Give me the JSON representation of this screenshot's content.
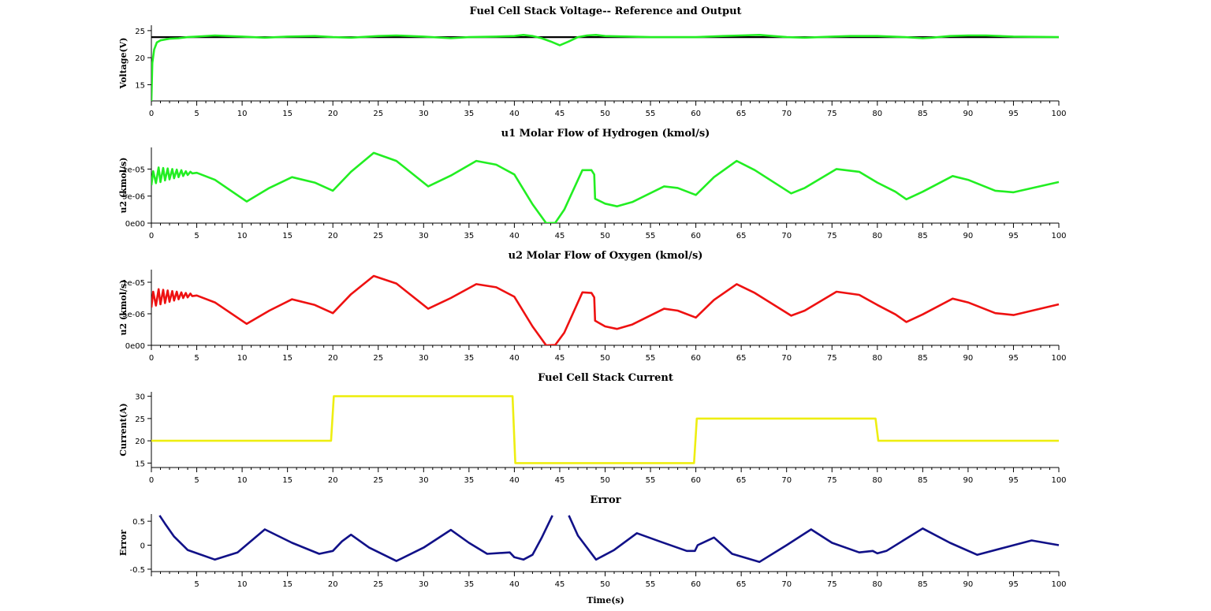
{
  "figure": {
    "x_label": "Time(s)"
  },
  "chart_data": [
    {
      "id": "voltage",
      "type": "line",
      "title": "Fuel Cell Stack Voltage-- Reference and Output",
      "ylabel": "Voltage(V)",
      "xlim": [
        0,
        100
      ],
      "ylim": [
        12,
        26
      ],
      "yticks": [
        15,
        20,
        25
      ],
      "ytick_labels": [
        "15",
        "20",
        "25"
      ],
      "xticks": [
        0,
        5,
        10,
        15,
        20,
        25,
        30,
        35,
        40,
        45,
        50,
        55,
        60,
        65,
        70,
        75,
        80,
        85,
        90,
        95,
        100
      ],
      "xtick_labels": [
        "0",
        "5",
        "10",
        "15",
        "20",
        "25",
        "30",
        "35",
        "40",
        "45",
        "50",
        "55",
        "60",
        "65",
        "70",
        "75",
        "80",
        "85",
        "90",
        "95",
        "100"
      ],
      "series": [
        {
          "color": "#000000",
          "x": [
            0,
            100
          ],
          "y": [
            23.8,
            23.8
          ]
        },
        {
          "color": "#22ee22",
          "x": [
            0,
            0.1,
            0.3,
            0.6,
            1,
            2,
            3,
            4,
            5,
            7,
            10,
            12.5,
            15,
            18,
            20,
            22,
            25,
            27,
            30,
            33,
            35,
            38,
            40,
            41,
            42,
            43,
            44,
            45,
            46,
            47,
            48,
            49,
            50,
            55,
            60,
            63,
            65,
            67,
            70,
            72,
            75,
            77,
            80,
            83,
            85,
            86,
            88,
            90,
            92,
            95,
            100
          ],
          "y": [
            12,
            19,
            21.5,
            22.8,
            23.2,
            23.5,
            23.6,
            23.8,
            23.9,
            24.1,
            23.9,
            23.7,
            23.9,
            24.0,
            23.8,
            23.7,
            24.0,
            24.1,
            23.9,
            23.6,
            23.8,
            23.9,
            24.0,
            24.2,
            24.0,
            23.6,
            23.0,
            22.3,
            23.0,
            23.8,
            24.1,
            24.2,
            24.0,
            23.8,
            23.8,
            24.0,
            24.1,
            24.2,
            23.8,
            23.7,
            23.9,
            24.0,
            24.0,
            23.8,
            23.6,
            23.7,
            24.0,
            24.1,
            24.1,
            23.9,
            23.8
          ]
        }
      ]
    },
    {
      "id": "hydrogen",
      "type": "line",
      "title": "u1 Molar Flow of Hydrogen (kmol/s)",
      "ylabel": "u2 (kmol/s)",
      "xlim": [
        0,
        100
      ],
      "ylim": [
        0,
        1.4e-05
      ],
      "yticks": [
        0,
        5e-06,
        1e-05
      ],
      "ytick_labels": [
        "0e00",
        "5e-06",
        "1e-05"
      ],
      "xticks": [
        0,
        5,
        10,
        15,
        20,
        25,
        30,
        35,
        40,
        45,
        50,
        55,
        60,
        65,
        70,
        75,
        80,
        85,
        90,
        95,
        100
      ],
      "xtick_labels": [
        "0",
        "5",
        "10",
        "15",
        "20",
        "25",
        "30",
        "35",
        "40",
        "45",
        "50",
        "55",
        "60",
        "65",
        "70",
        "75",
        "80",
        "85",
        "90",
        "95",
        "100"
      ],
      "series": [
        {
          "color": "#22ee22",
          "x": [
            0,
            0.2,
            0.5,
            0.8,
            1.0,
            1.3,
            1.5,
            1.8,
            2.0,
            2.3,
            2.5,
            2.8,
            3.0,
            3.3,
            3.5,
            3.8,
            4.0,
            4.3,
            4.5,
            5,
            7,
            10.5,
            13,
            15.5,
            18,
            20,
            22,
            24.5,
            27,
            30.5,
            33,
            35.8,
            38,
            40,
            42,
            43.5,
            44.5,
            45.5,
            47.5,
            48.5,
            48.8,
            48.9,
            50,
            51.3,
            53,
            56.5,
            58,
            60,
            62,
            64.5,
            66.5,
            70.5,
            72,
            75.5,
            78,
            80,
            82,
            83.2,
            85,
            88.3,
            90,
            93,
            95,
            100
          ],
          "y": [
            7e-06,
            9.6e-06,
            7.4e-06,
            1.03e-05,
            7.6e-06,
            1.02e-05,
            7.9e-06,
            1.01e-05,
            8.1e-06,
            1e-05,
            8.3e-06,
            9.9e-06,
            8.5e-06,
            9.8e-06,
            8.7e-06,
            9.6e-06,
            8.9e-06,
            9.5e-06,
            9.2e-06,
            9.3e-06,
            8e-06,
            4e-06,
            6.5e-06,
            8.5e-06,
            7.5e-06,
            6e-06,
            9.5e-06,
            1.3e-05,
            1.15e-05,
            6.8e-06,
            8.8e-06,
            1.15e-05,
            1.08e-05,
            9e-06,
            3.5e-06,
            0,
            5e-08,
            2.5e-06,
            9.8e-06,
            9.8e-06,
            9e-06,
            4.5e-06,
            3.6e-06,
            3.1e-06,
            3.9e-06,
            6.8e-06,
            6.5e-06,
            5.2e-06,
            8.5e-06,
            1.15e-05,
            9.8e-06,
            5.5e-06,
            6.5e-06,
            1e-05,
            9.5e-06,
            7.5e-06,
            5.8e-06,
            4.4e-06,
            5.8e-06,
            8.7e-06,
            8e-06,
            6e-06,
            5.7e-06,
            7.6e-06
          ]
        }
      ]
    },
    {
      "id": "oxygen",
      "type": "line",
      "title": "u2 Molar Flow of Oxygen (kmol/s)",
      "ylabel": "u2 (kmol/s)",
      "xlim": [
        0,
        100
      ],
      "ylim": [
        0,
        1.2e-05
      ],
      "yticks": [
        0,
        5e-06,
        1e-05
      ],
      "ytick_labels": [
        "0e00",
        "5e-06",
        "1e-05"
      ],
      "xticks": [
        0,
        5,
        10,
        15,
        20,
        25,
        30,
        35,
        40,
        45,
        50,
        55,
        60,
        65,
        70,
        75,
        80,
        85,
        90,
        95,
        100
      ],
      "xtick_labels": [
        "0",
        "5",
        "10",
        "15",
        "20",
        "25",
        "30",
        "35",
        "40",
        "45",
        "50",
        "55",
        "60",
        "65",
        "70",
        "75",
        "80",
        "85",
        "90",
        "95",
        "100"
      ],
      "series": [
        {
          "color": "#ee1111",
          "x": [
            0,
            0.2,
            0.5,
            0.8,
            1.0,
            1.3,
            1.5,
            1.8,
            2.0,
            2.3,
            2.5,
            2.8,
            3.0,
            3.3,
            3.5,
            3.8,
            4.0,
            4.3,
            4.5,
            5,
            7,
            10.5,
            13,
            15.5,
            18,
            20,
            22,
            24.5,
            27,
            30.5,
            33,
            35.8,
            38,
            40,
            42,
            43.5,
            44.5,
            45.5,
            47.5,
            48.5,
            48.8,
            48.9,
            50,
            51.3,
            53,
            56.5,
            58,
            60,
            62,
            64.5,
            66.5,
            70.5,
            72,
            75.5,
            78,
            80,
            82,
            83.2,
            85,
            88.3,
            90,
            93,
            95,
            100
          ],
          "y": [
            6e-06,
            8.5e-06,
            6.3e-06,
            8.9e-06,
            6.5e-06,
            8.8e-06,
            6.7e-06,
            8.7e-06,
            6.9e-06,
            8.6e-06,
            7.1e-06,
            8.5e-06,
            7.3e-06,
            8.4e-06,
            7.5e-06,
            8.3e-06,
            7.6e-06,
            8.2e-06,
            7.8e-06,
            7.9e-06,
            6.8e-06,
            3.4e-06,
            5.5e-06,
            7.3e-06,
            6.4e-06,
            5.1e-06,
            8.1e-06,
            1.1e-05,
            9.8e-06,
            5.8e-06,
            7.5e-06,
            9.7e-06,
            9.2e-06,
            7.7e-06,
            3e-06,
            0,
            5e-08,
            2e-06,
            8.4e-06,
            8.3e-06,
            7.6e-06,
            3.9e-06,
            3e-06,
            2.6e-06,
            3.3e-06,
            5.8e-06,
            5.5e-06,
            4.4e-06,
            7.2e-06,
            9.7e-06,
            8.3e-06,
            4.7e-06,
            5.5e-06,
            8.5e-06,
            8e-06,
            6.4e-06,
            4.9e-06,
            3.7e-06,
            4.9e-06,
            7.4e-06,
            6.8e-06,
            5.1e-06,
            4.8e-06,
            6.5e-06
          ]
        }
      ]
    },
    {
      "id": "current",
      "type": "line",
      "title": "Fuel Cell Stack Current",
      "ylabel": "Current(A)",
      "xlim": [
        0,
        100
      ],
      "ylim": [
        14,
        31
      ],
      "yticks": [
        15,
        20,
        25,
        30
      ],
      "ytick_labels": [
        "15",
        "20",
        "25",
        "30"
      ],
      "xticks": [
        0,
        5,
        10,
        15,
        20,
        25,
        30,
        35,
        40,
        45,
        50,
        55,
        60,
        65,
        70,
        75,
        80,
        85,
        90,
        95,
        100
      ],
      "xtick_labels": [
        "0",
        "5",
        "10",
        "15",
        "20",
        "25",
        "30",
        "35",
        "40",
        "45",
        "50",
        "55",
        "60",
        "65",
        "70",
        "75",
        "80",
        "85",
        "90",
        "95",
        "100"
      ],
      "series": [
        {
          "color": "#eeee11",
          "x": [
            0,
            19.8,
            20.1,
            39.8,
            40.1,
            59.8,
            60.1,
            79.8,
            80.1,
            100
          ],
          "y": [
            20,
            20,
            30,
            30,
            15,
            15,
            25,
            25,
            20,
            20
          ]
        }
      ]
    },
    {
      "id": "error",
      "type": "line",
      "title": "Error",
      "ylabel": "Error",
      "xlim": [
        0,
        100
      ],
      "ylim": [
        -0.55,
        0.65
      ],
      "yticks": [
        -0.5,
        0,
        0.5
      ],
      "ytick_labels": [
        "-0.5",
        "0",
        "0.5"
      ],
      "xticks": [
        5,
        10,
        15,
        20,
        25,
        30,
        35,
        40,
        45,
        50,
        55,
        60,
        65,
        70,
        75,
        80,
        85,
        90,
        95,
        100
      ],
      "xtick_labels": [
        "5",
        "10",
        "15",
        "20",
        "25",
        "30",
        "35",
        "40",
        "45",
        "50",
        "55",
        "60",
        "65",
        "70",
        "75",
        "80",
        "85",
        "90",
        "95",
        "100"
      ],
      "series": [
        {
          "color": "#111188",
          "x": [
            0.9,
            1.5,
            2.5,
            4,
            7,
            9.5,
            12.5,
            15.5,
            18.5,
            20,
            21,
            22,
            24,
            27,
            30,
            33,
            35,
            37,
            39.5,
            40,
            41,
            42,
            43,
            44.2
          ],
          "y": [
            0.62,
            0.45,
            0.18,
            -0.1,
            -0.3,
            -0.15,
            0.33,
            0.05,
            -0.18,
            -0.12,
            0.08,
            0.22,
            -0.05,
            -0.33,
            -0.05,
            0.32,
            0.05,
            -0.18,
            -0.15,
            -0.25,
            -0.3,
            -0.2,
            0.15,
            0.62
          ]
        },
        {
          "color": "#111188",
          "x": [
            46,
            47,
            49,
            51,
            53.5,
            56,
            59,
            59.9,
            60.2,
            62,
            64,
            67,
            70,
            72.7,
            75,
            78,
            79.5,
            80,
            81,
            85,
            88,
            91,
            94,
            97,
            100
          ],
          "y": [
            0.62,
            0.2,
            -0.3,
            -0.1,
            0.25,
            0.08,
            -0.12,
            -0.12,
            0.0,
            0.16,
            -0.18,
            -0.35,
            0.0,
            0.33,
            0.05,
            -0.15,
            -0.12,
            -0.17,
            -0.12,
            0.35,
            0.05,
            -0.2,
            -0.05,
            0.1,
            0.0
          ]
        }
      ]
    }
  ]
}
